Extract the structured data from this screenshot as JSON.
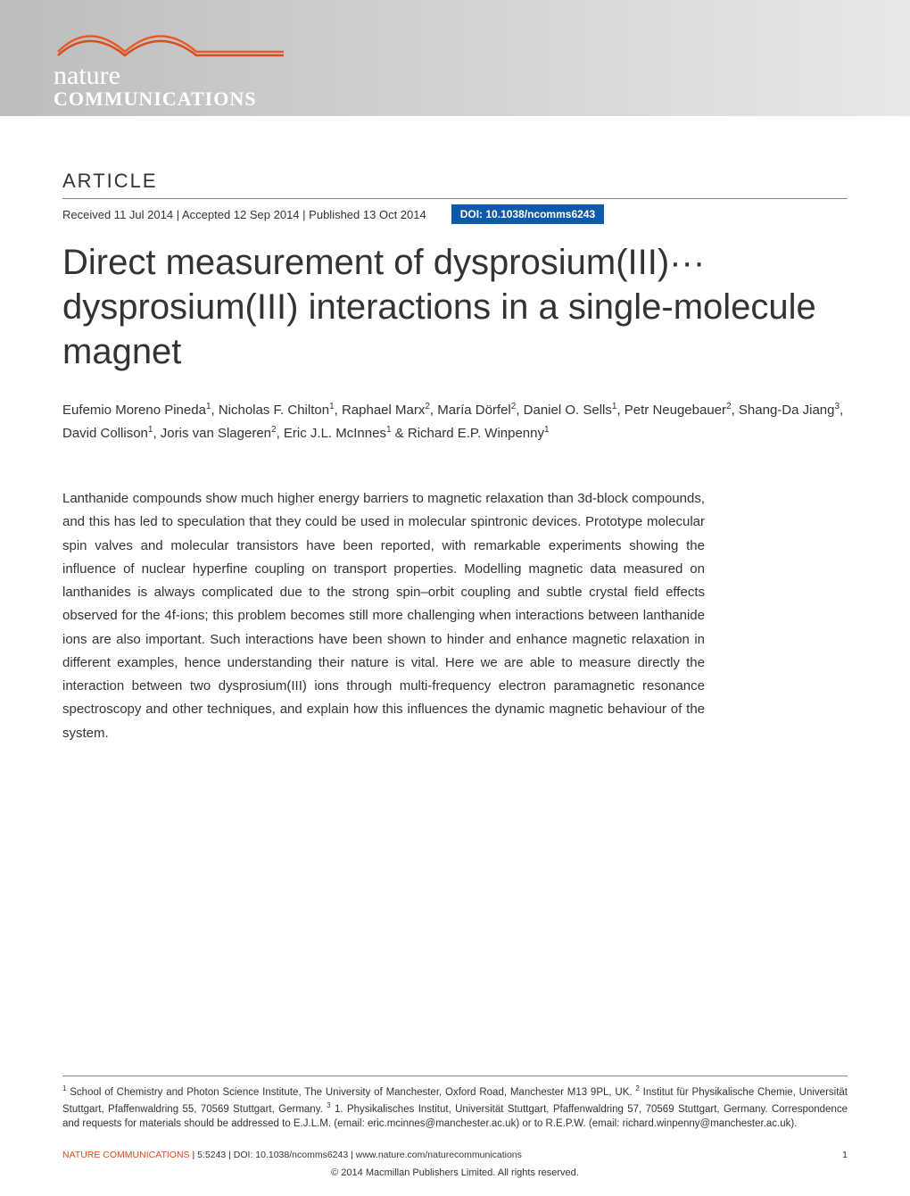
{
  "logo": {
    "line1": "nature",
    "line2": "COMMUNICATIONS",
    "swoosh_colors": [
      "#e85a2a",
      "#d84c1e"
    ],
    "band_gradient": [
      "#bdbdbe",
      "#e8e8e9"
    ]
  },
  "article_label": "ARTICLE",
  "meta": {
    "received": "Received 11 Jul 2014",
    "accepted": "Accepted 12 Sep 2014",
    "published": "Published 13 Oct 2014",
    "doi_label": "DOI: 10.1038/ncomms6243",
    "doi_bg": "#0f5aa8"
  },
  "title": "Direct measurement of dysprosium(III)··· dysprosium(III) interactions in a single-molecule magnet",
  "authors_html": "Eufemio Moreno Pineda<sup>1</sup>, Nicholas F. Chilton<sup>1</sup>, Raphael Marx<sup>2</sup>, María Dörfel<sup>2</sup>, Daniel O. Sells<sup>1</sup>, Petr Neugebauer<sup>2</sup>, Shang-Da Jiang<sup>3</sup>, David Collison<sup>1</sup>, Joris van Slageren<sup>2</sup>, Eric J.L. McInnes<sup>1</sup> & Richard E.P. Winpenny<sup>1</sup>",
  "abstract": "Lanthanide compounds show much higher energy barriers to magnetic relaxation than 3d-block compounds, and this has led to speculation that they could be used in molecular spintronic devices. Prototype molecular spin valves and molecular transistors have been reported, with remarkable experiments showing the influence of nuclear hyperfine coupling on transport properties. Modelling magnetic data measured on lanthanides is always complicated due to the strong spin–orbit coupling and subtle crystal field effects observed for the 4f-ions; this problem becomes still more challenging when interactions between lanthanide ions are also important. Such interactions have been shown to hinder and enhance magnetic relaxation in different examples, hence understanding their nature is vital. Here we are able to measure directly the interaction between two dysprosium(III) ions through multi-frequency electron paramagnetic resonance spectroscopy and other techniques, and explain how this influences the dynamic magnetic behaviour of the system.",
  "affiliations_html": "<sup>1</sup> School of Chemistry and Photon Science Institute, The University of Manchester, Oxford Road, Manchester M13 9PL, UK. <sup>2</sup> Institut für Physikalische Chemie, Universität Stuttgart, Pfaffenwaldring 55, 70569 Stuttgart, Germany. <sup>3</sup> 1. Physikalisches Institut, Universität Stuttgart, Pfaffenwaldring 57, 70569 Stuttgart, Germany. Correspondence and requests for materials should be addressed to E.J.L.M. (email: eric.mcinnes@manchester.ac.uk) or to R.E.P.W. (email: richard.winpenny@manchester.ac.uk).",
  "footer": {
    "brand": "NATURE COMMUNICATIONS",
    "citation": " | 5:5243 | DOI: 10.1038/ncomms6243 | www.nature.com/naturecommunications",
    "page": "1",
    "copyright": "© 2014 Macmillan Publishers Limited. All rights reserved."
  }
}
